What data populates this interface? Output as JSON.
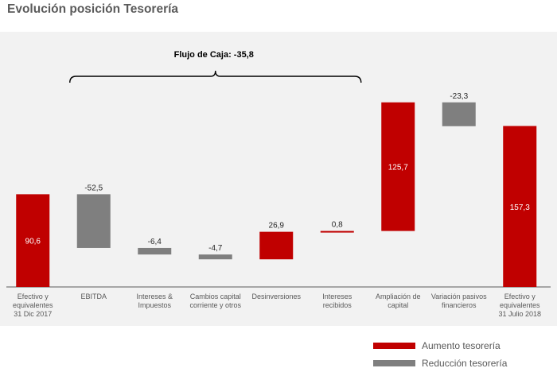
{
  "title": "Evolución posición Tesorería",
  "colors": {
    "increase": "#c00000",
    "decrease": "#7f7f7f",
    "baseline": "#595959",
    "background": "#f2f2f2"
  },
  "chart_data": {
    "type": "bar",
    "subtype": "waterfall",
    "categories": [
      "Efectivo y equivalentes 31 Dic 2017",
      "EBITDA",
      "Intereses & Impuestos",
      "Cambios capital corriente y otros",
      "Desinversiones",
      "Intereses recibidos",
      "Ampliación de capital",
      "Variación pasivos financieros",
      "Efectivo y equivalentes 31 Julio 2018"
    ],
    "category_lines": [
      [
        "Efectivo y",
        "equivalentes",
        "31 Dic 2017"
      ],
      [
        "EBITDA"
      ],
      [
        "Intereses &",
        "Impuestos"
      ],
      [
        "Cambios capital",
        "corriente y otros"
      ],
      [
        "Desinversiones"
      ],
      [
        "Intereses",
        "recibidos"
      ],
      [
        "Ampliación de",
        "capital"
      ],
      [
        "Variación pasivos",
        "financieros"
      ],
      [
        "Efectivo y",
        "equivalentes",
        "31 Julio 2018"
      ]
    ],
    "bars": [
      {
        "start": 0,
        "end": 90.6,
        "label": "90,6",
        "kind": "total",
        "label_pos": "inside"
      },
      {
        "start": 90.6,
        "end": 38.1,
        "label": "-52,5",
        "kind": "decrease",
        "label_pos": "above"
      },
      {
        "start": 38.1,
        "end": 31.7,
        "label": "-6,4",
        "kind": "decrease",
        "label_pos": "above"
      },
      {
        "start": 31.7,
        "end": 27.0,
        "label": "-4,7",
        "kind": "decrease",
        "label_pos": "above"
      },
      {
        "start": 27.0,
        "end": 53.9,
        "label": "26,9",
        "kind": "increase",
        "label_pos": "above"
      },
      {
        "start": 53.9,
        "end": 54.7,
        "label": "0,8",
        "kind": "increase",
        "label_pos": "above"
      },
      {
        "start": 54.7,
        "end": 180.4,
        "label": "125,7",
        "kind": "increase",
        "label_pos": "inside"
      },
      {
        "start": 180.4,
        "end": 157.1,
        "label": "-23,3",
        "kind": "decrease",
        "label_pos": "above"
      },
      {
        "start": 0,
        "end": 157.3,
        "label": "157,3",
        "kind": "total",
        "label_pos": "inside"
      }
    ],
    "ylim": [
      0,
      190
    ],
    "grid": false,
    "annotation": {
      "text": "Flujo de Caja: -35,8",
      "from_index": 1,
      "to_index": 5
    },
    "legend": {
      "position": "bottom-right",
      "items": [
        {
          "label": "Aumento tesorería",
          "kind": "increase"
        },
        {
          "label": "Reducción tesorería",
          "kind": "decrease"
        }
      ]
    }
  }
}
